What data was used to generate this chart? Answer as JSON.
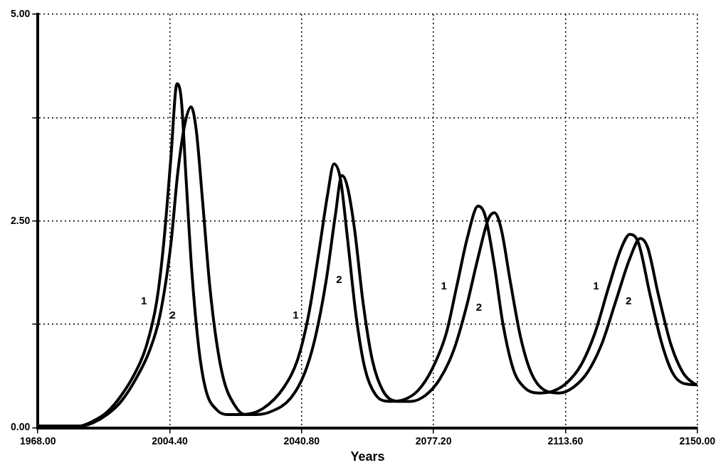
{
  "chart_data": {
    "type": "line",
    "xlabel": "Years",
    "xlim": [
      1968,
      2150
    ],
    "ylim": [
      0,
      5
    ],
    "xticks": [
      {
        "value": 1968,
        "label": "1968.00"
      },
      {
        "value": 2004.4,
        "label": "2004.40"
      },
      {
        "value": 2040.8,
        "label": "2040.80"
      },
      {
        "value": 2077.2,
        "label": "2077.20"
      },
      {
        "value": 2113.6,
        "label": "2113.60"
      },
      {
        "value": 2150,
        "label": "2150.00"
      }
    ],
    "yticks": [
      {
        "value": 0,
        "label": "0.00"
      },
      {
        "value": 1.25,
        "label": null
      },
      {
        "value": 2.5,
        "label": "2.50"
      },
      {
        "value": 3.75,
        "label": null
      },
      {
        "value": 5,
        "label": "5.00"
      }
    ],
    "grid": true,
    "legend": false,
    "marker": "none",
    "line_style": "solid",
    "series": [
      {
        "name": "1",
        "color": "#000000",
        "x": [
          1968.0,
          1979.3,
          1983.2,
          1987.1,
          1991.0,
          1994.9,
          1997.8,
          2000.8,
          2002.7,
          2004.7,
          2006.4,
          2007.6,
          2008.9,
          2010.5,
          2012.5,
          2014.4,
          2017.3,
          2020.3,
          2024.2,
          2030.0,
          2035.9,
          2039.8,
          2042.7,
          2045.6,
          2048.0,
          2049.7,
          2051.5,
          2053.4,
          2055.8,
          2058.3,
          2061.2,
          2065.1,
          2069.0,
          2072.9,
          2076.8,
          2080.7,
          2083.6,
          2086.6,
          2089.5,
          2091.4,
          2094.0,
          2096.3,
          2099.2,
          2102.2,
          2106.1,
          2110.0,
          2113.9,
          2117.8,
          2121.7,
          2125.6,
          2129.1,
          2131.4,
          2133.8,
          2136.9,
          2140.2,
          2143.1,
          2146.0,
          2150.0
        ],
        "values": [
          0.02,
          0.02,
          0.08,
          0.19,
          0.39,
          0.67,
          0.97,
          1.53,
          2.22,
          3.26,
          4.16,
          3.96,
          3.01,
          1.88,
          0.93,
          0.45,
          0.22,
          0.16,
          0.16,
          0.23,
          0.49,
          0.84,
          1.36,
          2.14,
          2.83,
          3.19,
          3.01,
          2.31,
          1.36,
          0.71,
          0.4,
          0.32,
          0.34,
          0.45,
          0.71,
          1.14,
          1.71,
          2.31,
          2.68,
          2.57,
          1.96,
          1.27,
          0.71,
          0.49,
          0.42,
          0.44,
          0.54,
          0.75,
          1.14,
          1.71,
          2.18,
          2.34,
          2.23,
          1.62,
          1.02,
          0.67,
          0.54,
          0.52
        ]
      },
      {
        "name": "2",
        "color": "#000000",
        "x": [
          1968.0,
          1979.3,
          1983.2,
          1987.1,
          1991.0,
          1994.9,
          1998.8,
          2001.7,
          2004.7,
          2006.6,
          2008.6,
          2010.3,
          2011.7,
          2013.4,
          2015.4,
          2017.3,
          2019.3,
          2022.2,
          2025.1,
          2028.1,
          2032.0,
          2037.8,
          2041.7,
          2044.6,
          2047.6,
          2050.1,
          2051.9,
          2053.4,
          2055.4,
          2057.7,
          2060.2,
          2063.2,
          2067.1,
          2071.0,
          2074.9,
          2078.8,
          2082.7,
          2086.2,
          2089.5,
          2092.4,
          2094.0,
          2095.9,
          2098.3,
          2101.2,
          2104.1,
          2108.0,
          2111.9,
          2115.8,
          2119.7,
          2123.6,
          2127.5,
          2131.4,
          2134.3,
          2136.3,
          2139.2,
          2142.7,
          2146.0,
          2148.9,
          2150.0
        ],
        "values": [
          0.02,
          0.02,
          0.06,
          0.16,
          0.32,
          0.58,
          0.93,
          1.36,
          2.22,
          3.08,
          3.68,
          3.88,
          3.6,
          2.77,
          1.73,
          1.04,
          0.58,
          0.28,
          0.16,
          0.16,
          0.19,
          0.36,
          0.67,
          1.1,
          1.79,
          2.57,
          3.05,
          2.92,
          2.4,
          1.53,
          0.84,
          0.45,
          0.32,
          0.32,
          0.39,
          0.58,
          0.93,
          1.45,
          2.06,
          2.53,
          2.6,
          2.4,
          1.79,
          1.1,
          0.67,
          0.45,
          0.42,
          0.49,
          0.67,
          1.01,
          1.53,
          2.05,
          2.29,
          2.18,
          1.62,
          1.01,
          0.67,
          0.54,
          0.52
        ]
      }
    ]
  }
}
